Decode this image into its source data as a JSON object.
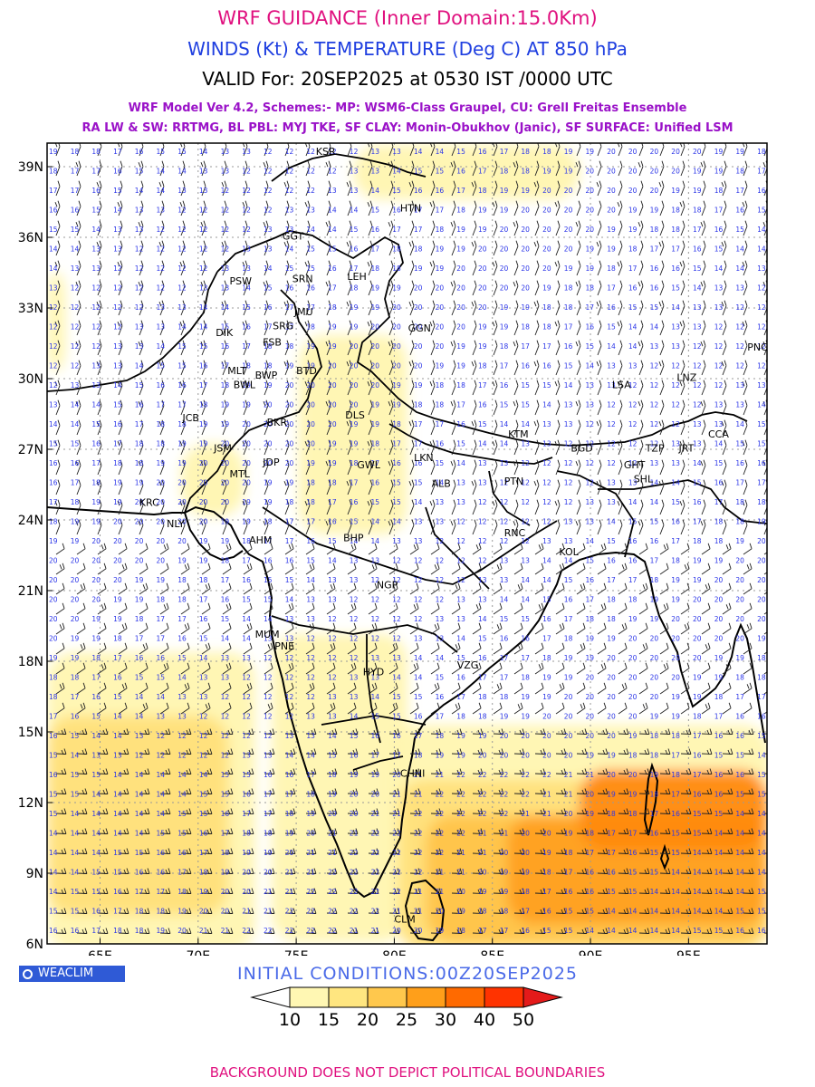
{
  "header": {
    "title": "WRF GUIDANCE (Inner Domain:15.0Km)",
    "subtitle": "WINDS (Kt) & TEMPERATURE (Deg C) AT 850 hPa",
    "valid": "VALID For: 20SEP2025 at 0530 IST /0000 UTC",
    "model_line1": "WRF Model Ver 4.2, Schemes:- MP: WSM6-Class Graupel, CU: Grell Freitas Ensemble",
    "model_line2": "RA LW & SW: RRTMG, BL PBL: MYJ TKE, SF CLAY: Monin-Obukhov (Janic), SF SURFACE: Unified LSM"
  },
  "map": {
    "lon_range": [
      62.3,
      99.0
    ],
    "lat_range": [
      6.0,
      40.0
    ],
    "lon_ticks": [
      {
        "lon": 65,
        "label": "65E"
      },
      {
        "lon": 70,
        "label": "70E"
      },
      {
        "lon": 75,
        "label": "75E"
      },
      {
        "lon": 80,
        "label": "80E"
      },
      {
        "lon": 85,
        "label": "85E"
      },
      {
        "lon": 90,
        "label": "90E"
      },
      {
        "lon": 95,
        "label": "95E"
      }
    ],
    "lat_ticks": [
      {
        "lat": 6,
        "label": "6N"
      },
      {
        "lat": 9,
        "label": "9N"
      },
      {
        "lat": 12,
        "label": "12N"
      },
      {
        "lat": 15,
        "label": "15N"
      },
      {
        "lat": 18,
        "label": "18N"
      },
      {
        "lat": 21,
        "label": "21N"
      },
      {
        "lat": 24,
        "label": "24N"
      },
      {
        "lat": 27,
        "label": "27N"
      },
      {
        "lat": 30,
        "label": "30N"
      },
      {
        "lat": 33,
        "label": "33N"
      },
      {
        "lat": 36,
        "label": "36N"
      },
      {
        "lat": 39,
        "label": "39N"
      }
    ],
    "cities": [
      {
        "name": "KSR",
        "lon": 76.0,
        "lat": 39.5
      },
      {
        "name": "HTN",
        "lon": 80.3,
        "lat": 37.1
      },
      {
        "name": "GGT",
        "lon": 74.3,
        "lat": 35.9
      },
      {
        "name": "PSW",
        "lon": 71.6,
        "lat": 34.0
      },
      {
        "name": "SRN",
        "lon": 74.8,
        "lat": 34.1
      },
      {
        "name": "LEH",
        "lon": 77.6,
        "lat": 34.2
      },
      {
        "name": "JMU",
        "lon": 74.9,
        "lat": 32.7
      },
      {
        "name": "SRG",
        "lon": 73.8,
        "lat": 32.1
      },
      {
        "name": "DIK",
        "lon": 70.9,
        "lat": 31.8
      },
      {
        "name": "GGN",
        "lon": 80.7,
        "lat": 32.0
      },
      {
        "name": "FSB",
        "lon": 73.3,
        "lat": 31.4
      },
      {
        "name": "MLT",
        "lon": 71.5,
        "lat": 30.2
      },
      {
        "name": "BWP",
        "lon": 72.9,
        "lat": 30.0
      },
      {
        "name": "BTD",
        "lon": 75.0,
        "lat": 30.2
      },
      {
        "name": "BWL",
        "lon": 71.8,
        "lat": 29.6
      },
      {
        "name": "LSA",
        "lon": 91.1,
        "lat": 29.6
      },
      {
        "name": "LNZ",
        "lon": 94.4,
        "lat": 29.9
      },
      {
        "name": "PNG",
        "lon": 98.0,
        "lat": 31.2
      },
      {
        "name": "JCB",
        "lon": 69.2,
        "lat": 28.2
      },
      {
        "name": "BKR",
        "lon": 73.5,
        "lat": 28.0
      },
      {
        "name": "DLS",
        "lon": 77.5,
        "lat": 28.3
      },
      {
        "name": "KTM",
        "lon": 85.8,
        "lat": 27.5
      },
      {
        "name": "CCA",
        "lon": 96.0,
        "lat": 27.5
      },
      {
        "name": "JSM",
        "lon": 70.8,
        "lat": 26.9
      },
      {
        "name": "BGD",
        "lon": 89.0,
        "lat": 26.9
      },
      {
        "name": "TZP",
        "lon": 92.8,
        "lat": 26.9
      },
      {
        "name": "JRT",
        "lon": 94.5,
        "lat": 26.9
      },
      {
        "name": "JDP",
        "lon": 73.3,
        "lat": 26.3
      },
      {
        "name": "GWL",
        "lon": 78.1,
        "lat": 26.2
      },
      {
        "name": "LKN",
        "lon": 81.0,
        "lat": 26.5
      },
      {
        "name": "GHT",
        "lon": 91.7,
        "lat": 26.2
      },
      {
        "name": "MTL",
        "lon": 71.6,
        "lat": 25.8
      },
      {
        "name": "SHL",
        "lon": 92.2,
        "lat": 25.6
      },
      {
        "name": "PTN",
        "lon": 85.6,
        "lat": 25.5
      },
      {
        "name": "ALB",
        "lon": 81.9,
        "lat": 25.4
      },
      {
        "name": "KRC",
        "lon": 67.0,
        "lat": 24.6
      },
      {
        "name": "NLY",
        "lon": 68.4,
        "lat": 23.7
      },
      {
        "name": "AHM",
        "lon": 72.6,
        "lat": 23.0
      },
      {
        "name": "BHP",
        "lon": 77.4,
        "lat": 23.1
      },
      {
        "name": "RNC",
        "lon": 85.6,
        "lat": 23.3
      },
      {
        "name": "KOL",
        "lon": 88.4,
        "lat": 22.5
      },
      {
        "name": "NGP",
        "lon": 79.1,
        "lat": 21.1
      },
      {
        "name": "MUM",
        "lon": 72.9,
        "lat": 19.0
      },
      {
        "name": "PNE",
        "lon": 73.9,
        "lat": 18.5
      },
      {
        "name": "HYD",
        "lon": 78.4,
        "lat": 17.4
      },
      {
        "name": "VZG",
        "lon": 83.2,
        "lat": 17.7
      },
      {
        "name": "CHNI",
        "lon": 80.3,
        "lat": 13.1
      },
      {
        "name": "CLM",
        "lon": 80.0,
        "lat": 6.9
      }
    ]
  },
  "init_conditions": "INITIAL CONDITIONS:00Z20SEP2025",
  "legend": {
    "labels": [
      "10",
      "15",
      "20",
      "25",
      "30",
      "40",
      "50"
    ],
    "colors": [
      "#ffffff",
      "#fff7b3",
      "#ffe680",
      "#ffc84d",
      "#ff9f1a",
      "#ff6a00",
      "#ff3300",
      "#e41a1a"
    ]
  },
  "brand": "WEACLIM",
  "footer": "BACKGROUND DOES NOT DEPICT POLITICAL BOUNDARIES",
  "colors": {
    "title": "#e0117f",
    "subtitle": "#1f3fe0",
    "model": "#9a12c8",
    "numbers": "#2b35e8"
  }
}
